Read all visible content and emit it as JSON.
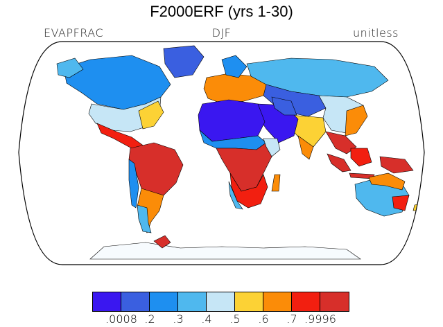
{
  "title": "F2000ERF (yrs 1-30)",
  "left_label": "EVAPFRAC",
  "center_label": "DJF",
  "right_label": "unitless",
  "colorbar": {
    "colors": [
      "#3a17f0",
      "#3a5fe0",
      "#1e8ff0",
      "#4fb8ee",
      "#c6e6f6",
      "#fcd235",
      "#fb8c08",
      "#f21f10",
      "#d72f2a"
    ],
    "labels": [
      ".0008",
      ".2",
      ".3",
      ".4",
      ".5",
      ".6",
      ".7",
      ".9996"
    ]
  },
  "map": {
    "projection": "Robinson",
    "field": "EVAPFRAC",
    "land_fill_regions": [
      {
        "region": "Canada / northern North America",
        "level": "0.2-0.3"
      },
      {
        "region": "Eastern United States",
        "level": "0.5-0.6"
      },
      {
        "region": "Mexico / Central America",
        "level": "0.7-0.9996"
      },
      {
        "region": "Amazon / South America",
        "level": "0.7-0.9996"
      },
      {
        "region": "Patagonia",
        "level": "0.3-0.4"
      },
      {
        "region": "Sahara / Arabia",
        "level": "0.0008-0.2"
      },
      {
        "region": "Central Africa",
        "level": "0.7-0.9996"
      },
      {
        "region": "Southern Africa",
        "level": "0.6-0.7"
      },
      {
        "region": "Europe",
        "level": "0.6-0.7"
      },
      {
        "region": "Russia / Siberia",
        "level": "0.2-0.4"
      },
      {
        "region": "South Asia",
        "level": "0.5-0.7"
      },
      {
        "region": "Maritime Continent",
        "level": "0.7-0.9996"
      },
      {
        "region": "Interior Australia",
        "level": "0.3-0.4"
      },
      {
        "region": "Northern/Eastern Australia",
        "level": "0.6-0.7"
      },
      {
        "region": "Antarctic Peninsula",
        "level": "0.7-0.9996"
      }
    ]
  }
}
